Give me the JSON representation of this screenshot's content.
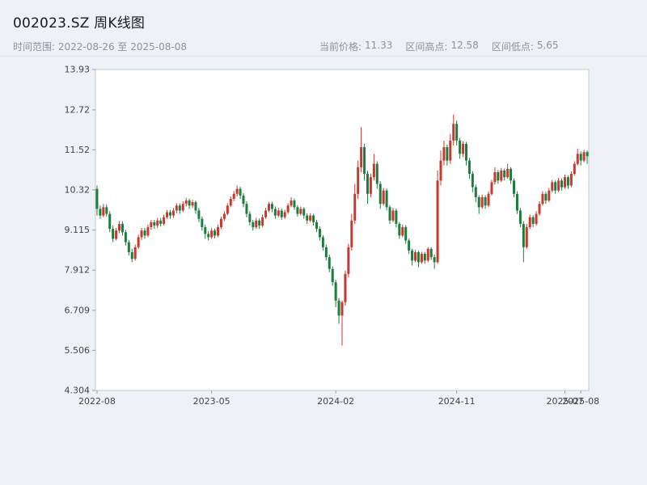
{
  "header": {
    "title": "002023.SZ 周K线图",
    "time_range": "时间范围: 2022-08-26 至 2025-08-08",
    "stats": [
      {
        "label": "当前价格:",
        "value": "11.33"
      },
      {
        "label": "区间高点:",
        "value": "12.58"
      },
      {
        "label": "区间低点:",
        "value": "5.65"
      }
    ]
  },
  "chart_data": {
    "type": "candlestick",
    "title": "002023.SZ 周K线图",
    "period": "weekly",
    "time_range": [
      "2022-08-26",
      "2025-08-08"
    ],
    "current_price": 11.33,
    "range_high": 12.58,
    "range_low": 5.65,
    "y_range": [
      4.304,
      13.93
    ],
    "y_ticks": [
      "13.93",
      "12.72",
      "11.52",
      "10.32",
      "9.115",
      "7.912",
      "6.709",
      "5.506",
      "4.304"
    ],
    "x_ticks": [
      {
        "label": "2022-08",
        "index": 0
      },
      {
        "label": "2023-05",
        "index": 36
      },
      {
        "label": "2024-02",
        "index": 75
      },
      {
        "label": "2024-11",
        "index": 113
      },
      {
        "label": "2025-07",
        "index": 147
      },
      {
        "label": "2025-08",
        "index": 152
      }
    ],
    "grid": false,
    "legend": "none",
    "up_color": "#c9382e",
    "down_color": "#1e7d3e",
    "plot_bg": "#ffffff",
    "plot_border": "#c4c8cd",
    "candles_format": [
      "open",
      "high",
      "low",
      "close"
    ],
    "candles": [
      [
        10.35,
        10.45,
        9.55,
        9.75
      ],
      [
        9.75,
        9.85,
        9.45,
        9.55
      ],
      [
        9.55,
        9.9,
        9.5,
        9.8
      ],
      [
        9.8,
        9.88,
        9.52,
        9.6
      ],
      [
        9.6,
        9.68,
        9.05,
        9.15
      ],
      [
        9.15,
        9.25,
        8.75,
        8.85
      ],
      [
        8.85,
        9.18,
        8.8,
        9.1
      ],
      [
        9.1,
        9.38,
        9.02,
        9.3
      ],
      [
        9.3,
        9.38,
        8.95,
        9.05
      ],
      [
        9.05,
        9.12,
        8.65,
        8.75
      ],
      [
        8.75,
        8.82,
        8.35,
        8.45
      ],
      [
        8.45,
        8.55,
        8.15,
        8.25
      ],
      [
        8.25,
        8.68,
        8.2,
        8.6
      ],
      [
        8.6,
        8.98,
        8.55,
        8.9
      ],
      [
        8.9,
        9.18,
        8.82,
        9.1
      ],
      [
        9.1,
        9.18,
        8.85,
        8.95
      ],
      [
        8.95,
        9.28,
        8.9,
        9.2
      ],
      [
        9.2,
        9.42,
        9.12,
        9.35
      ],
      [
        9.35,
        9.42,
        9.15,
        9.25
      ],
      [
        9.25,
        9.48,
        9.18,
        9.4
      ],
      [
        9.4,
        9.48,
        9.22,
        9.3
      ],
      [
        9.3,
        9.58,
        9.25,
        9.5
      ],
      [
        9.5,
        9.72,
        9.45,
        9.65
      ],
      [
        9.65,
        9.72,
        9.45,
        9.55
      ],
      [
        9.55,
        9.78,
        9.48,
        9.7
      ],
      [
        9.7,
        9.92,
        9.62,
        9.85
      ],
      [
        9.85,
        9.92,
        9.6,
        9.7
      ],
      [
        9.7,
        9.98,
        9.65,
        9.9
      ],
      [
        9.9,
        10.08,
        9.82,
        10.0
      ],
      [
        10.0,
        10.06,
        9.75,
        9.85
      ],
      [
        9.85,
        10.02,
        9.78,
        9.95
      ],
      [
        9.95,
        10.0,
        9.6,
        9.7
      ],
      [
        9.7,
        9.78,
        9.35,
        9.45
      ],
      [
        9.45,
        9.52,
        9.1,
        9.2
      ],
      [
        9.2,
        9.28,
        8.85,
        9.0
      ],
      [
        9.0,
        9.08,
        8.8,
        8.9
      ],
      [
        8.9,
        9.18,
        8.85,
        9.1
      ],
      [
        9.1,
        9.16,
        8.86,
        8.95
      ],
      [
        8.95,
        9.28,
        8.9,
        9.2
      ],
      [
        9.2,
        9.52,
        9.15,
        9.45
      ],
      [
        9.45,
        9.68,
        9.38,
        9.6
      ],
      [
        9.6,
        9.92,
        9.55,
        9.85
      ],
      [
        9.85,
        10.12,
        9.8,
        10.05
      ],
      [
        10.05,
        10.28,
        9.98,
        10.2
      ],
      [
        10.2,
        10.45,
        10.12,
        10.35
      ],
      [
        10.35,
        10.42,
        10.05,
        10.15
      ],
      [
        10.15,
        10.22,
        9.8,
        9.9
      ],
      [
        9.9,
        9.98,
        9.5,
        9.6
      ],
      [
        9.6,
        9.68,
        9.25,
        9.35
      ],
      [
        9.35,
        9.42,
        9.1,
        9.2
      ],
      [
        9.2,
        9.48,
        9.15,
        9.4
      ],
      [
        9.4,
        9.46,
        9.15,
        9.25
      ],
      [
        9.25,
        9.58,
        9.2,
        9.5
      ],
      [
        9.5,
        9.78,
        9.45,
        9.7
      ],
      [
        9.7,
        9.96,
        9.65,
        9.9
      ],
      [
        9.9,
        9.96,
        9.65,
        9.75
      ],
      [
        9.75,
        9.82,
        9.45,
        9.55
      ],
      [
        9.55,
        9.78,
        9.5,
        9.7
      ],
      [
        9.7,
        9.76,
        9.42,
        9.5
      ],
      [
        9.5,
        9.72,
        9.45,
        9.65
      ],
      [
        9.65,
        9.92,
        9.6,
        9.85
      ],
      [
        9.85,
        10.1,
        9.8,
        10.0
      ],
      [
        10.0,
        10.06,
        9.72,
        9.8
      ],
      [
        9.8,
        9.86,
        9.52,
        9.6
      ],
      [
        9.6,
        9.82,
        9.55,
        9.75
      ],
      [
        9.75,
        9.8,
        9.45,
        9.55
      ],
      [
        9.55,
        9.62,
        9.3,
        9.4
      ],
      [
        9.4,
        9.62,
        9.35,
        9.55
      ],
      [
        9.55,
        9.6,
        9.25,
        9.35
      ],
      [
        9.35,
        9.42,
        9.05,
        9.15
      ],
      [
        9.15,
        9.22,
        8.8,
        8.9
      ],
      [
        8.9,
        8.96,
        8.5,
        8.6
      ],
      [
        8.6,
        8.68,
        8.2,
        8.3
      ],
      [
        8.3,
        8.38,
        7.85,
        7.95
      ],
      [
        7.95,
        8.02,
        7.45,
        7.55
      ],
      [
        7.55,
        7.62,
        6.8,
        7.0
      ],
      [
        7.0,
        7.08,
        6.3,
        6.55
      ],
      [
        6.55,
        7.0,
        5.65,
        6.95
      ],
      [
        6.95,
        7.9,
        6.85,
        7.8
      ],
      [
        7.8,
        8.7,
        7.7,
        8.6
      ],
      [
        8.6,
        9.6,
        8.5,
        9.4
      ],
      [
        9.4,
        10.5,
        9.3,
        10.2
      ],
      [
        10.2,
        11.2,
        10.05,
        11.0
      ],
      [
        11.0,
        12.2,
        10.85,
        11.6
      ],
      [
        11.6,
        11.7,
        10.6,
        10.8
      ],
      [
        10.8,
        10.9,
        9.9,
        10.2
      ],
      [
        10.2,
        10.8,
        10.1,
        10.7
      ],
      [
        10.7,
        11.4,
        10.6,
        11.1
      ],
      [
        11.1,
        11.18,
        10.35,
        10.5
      ],
      [
        10.5,
        10.58,
        9.75,
        9.9
      ],
      [
        9.9,
        10.38,
        9.85,
        10.3
      ],
      [
        10.3,
        10.36,
        9.7,
        9.8
      ],
      [
        9.8,
        9.86,
        9.3,
        9.4
      ],
      [
        9.4,
        9.78,
        9.35,
        9.7
      ],
      [
        9.7,
        9.76,
        9.2,
        9.3
      ],
      [
        9.3,
        9.36,
        8.85,
        8.95
      ],
      [
        8.95,
        9.28,
        8.9,
        9.2
      ],
      [
        9.2,
        9.26,
        8.7,
        8.8
      ],
      [
        8.8,
        8.86,
        8.4,
        8.5
      ],
      [
        8.5,
        8.56,
        8.05,
        8.2
      ],
      [
        8.2,
        8.52,
        8.15,
        8.45
      ],
      [
        8.45,
        8.5,
        8.0,
        8.15
      ],
      [
        8.15,
        8.46,
        8.1,
        8.4
      ],
      [
        8.4,
        8.46,
        8.1,
        8.2
      ],
      [
        8.2,
        8.6,
        8.15,
        8.55
      ],
      [
        8.55,
        8.6,
        8.22,
        8.3
      ],
      [
        8.3,
        8.38,
        7.95,
        8.15
      ],
      [
        8.15,
        10.9,
        8.1,
        10.6
      ],
      [
        10.6,
        11.5,
        10.45,
        11.2
      ],
      [
        11.2,
        11.8,
        11.05,
        11.6
      ],
      [
        11.6,
        11.68,
        11.05,
        11.2
      ],
      [
        11.2,
        12.0,
        11.1,
        11.8
      ],
      [
        11.8,
        12.58,
        11.65,
        12.3
      ],
      [
        12.3,
        12.4,
        11.65,
        11.8
      ],
      [
        11.8,
        11.88,
        11.25,
        11.4
      ],
      [
        11.4,
        11.78,
        11.3,
        11.7
      ],
      [
        11.7,
        11.76,
        11.05,
        11.2
      ],
      [
        11.2,
        11.28,
        10.65,
        10.8
      ],
      [
        10.8,
        10.88,
        10.25,
        10.4
      ],
      [
        10.4,
        10.48,
        9.95,
        10.1
      ],
      [
        10.1,
        10.16,
        9.6,
        9.8
      ],
      [
        9.8,
        10.18,
        9.75,
        10.1
      ],
      [
        10.1,
        10.16,
        9.75,
        9.85
      ],
      [
        9.85,
        10.28,
        9.8,
        10.2
      ],
      [
        10.2,
        10.62,
        10.15,
        10.55
      ],
      [
        10.55,
        11.0,
        10.48,
        10.85
      ],
      [
        10.85,
        10.92,
        10.5,
        10.6
      ],
      [
        10.6,
        10.98,
        10.55,
        10.9
      ],
      [
        10.9,
        10.96,
        10.6,
        10.7
      ],
      [
        10.7,
        11.1,
        10.65,
        10.95
      ],
      [
        10.95,
        11.0,
        10.5,
        10.6
      ],
      [
        10.6,
        10.66,
        10.1,
        10.2
      ],
      [
        10.2,
        10.28,
        9.6,
        9.7
      ],
      [
        9.7,
        9.78,
        9.2,
        9.3
      ],
      [
        9.3,
        9.38,
        8.15,
        8.6
      ],
      [
        8.6,
        9.3,
        8.55,
        9.2
      ],
      [
        9.2,
        9.58,
        9.15,
        9.5
      ],
      [
        9.5,
        9.56,
        9.2,
        9.3
      ],
      [
        9.3,
        9.68,
        9.25,
        9.6
      ],
      [
        9.6,
        9.98,
        9.55,
        9.9
      ],
      [
        9.9,
        10.28,
        9.85,
        10.2
      ],
      [
        10.2,
        10.26,
        9.9,
        10.0
      ],
      [
        10.0,
        10.38,
        9.95,
        10.3
      ],
      [
        10.3,
        10.62,
        10.25,
        10.55
      ],
      [
        10.55,
        10.6,
        10.2,
        10.3
      ],
      [
        10.3,
        10.68,
        10.25,
        10.6
      ],
      [
        10.6,
        10.66,
        10.3,
        10.4
      ],
      [
        10.4,
        10.78,
        10.35,
        10.7
      ],
      [
        10.7,
        10.76,
        10.35,
        10.45
      ],
      [
        10.45,
        10.88,
        10.4,
        10.8
      ],
      [
        10.8,
        11.18,
        10.75,
        11.1
      ],
      [
        11.1,
        11.55,
        11.05,
        11.4
      ],
      [
        11.4,
        11.48,
        11.05,
        11.2
      ],
      [
        11.2,
        11.52,
        11.15,
        11.45
      ],
      [
        11.45,
        11.5,
        11.1,
        11.33
      ]
    ]
  }
}
